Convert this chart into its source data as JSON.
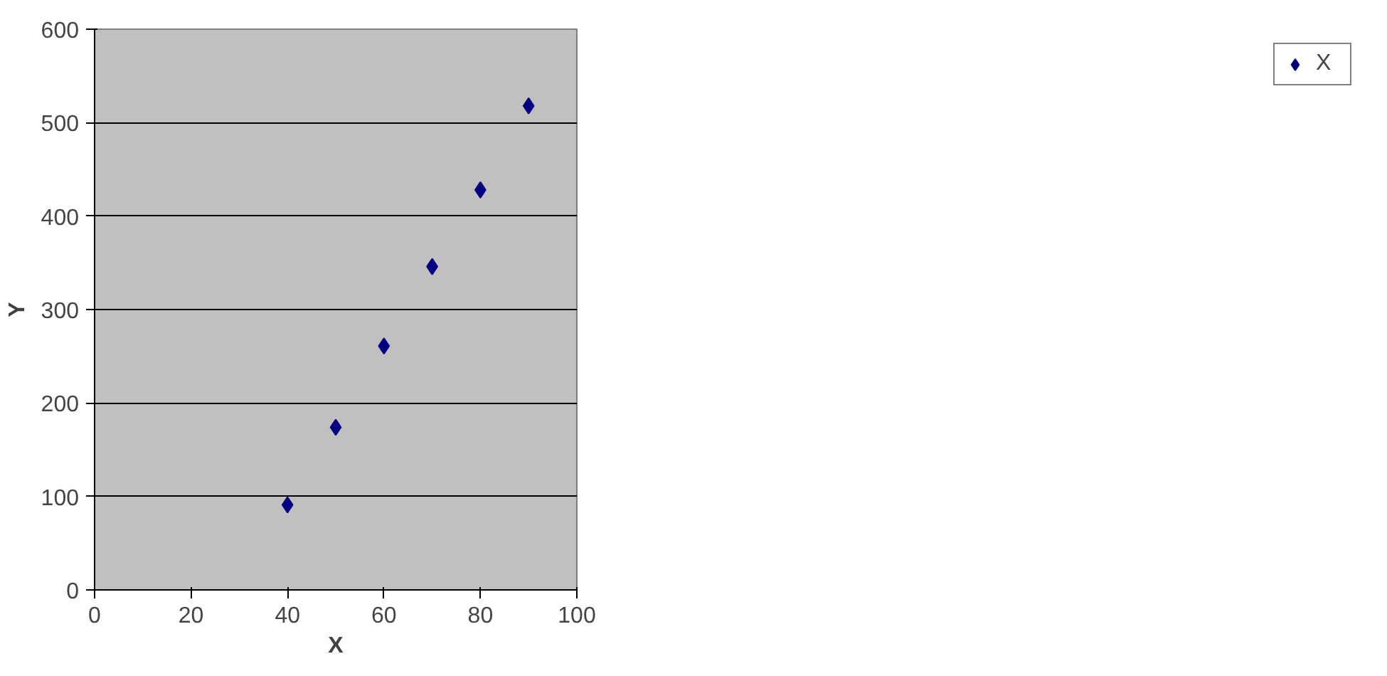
{
  "chart_data": {
    "type": "scatter",
    "xlabel": "X",
    "ylabel": "Y",
    "x": [
      40,
      50,
      60,
      70,
      80,
      90
    ],
    "series": [
      {
        "name": "X",
        "color": "#000080",
        "values": [
          91,
          174,
          261,
          346,
          428,
          518
        ]
      }
    ],
    "xlim": [
      0,
      100
    ],
    "xticks": [
      0,
      20,
      40,
      60,
      80,
      100
    ],
    "ylim": [
      0,
      600
    ],
    "yticks": [
      0,
      100,
      200,
      300,
      400,
      500,
      600
    ],
    "grid": "y",
    "legend": "right",
    "marker": "diamond"
  }
}
